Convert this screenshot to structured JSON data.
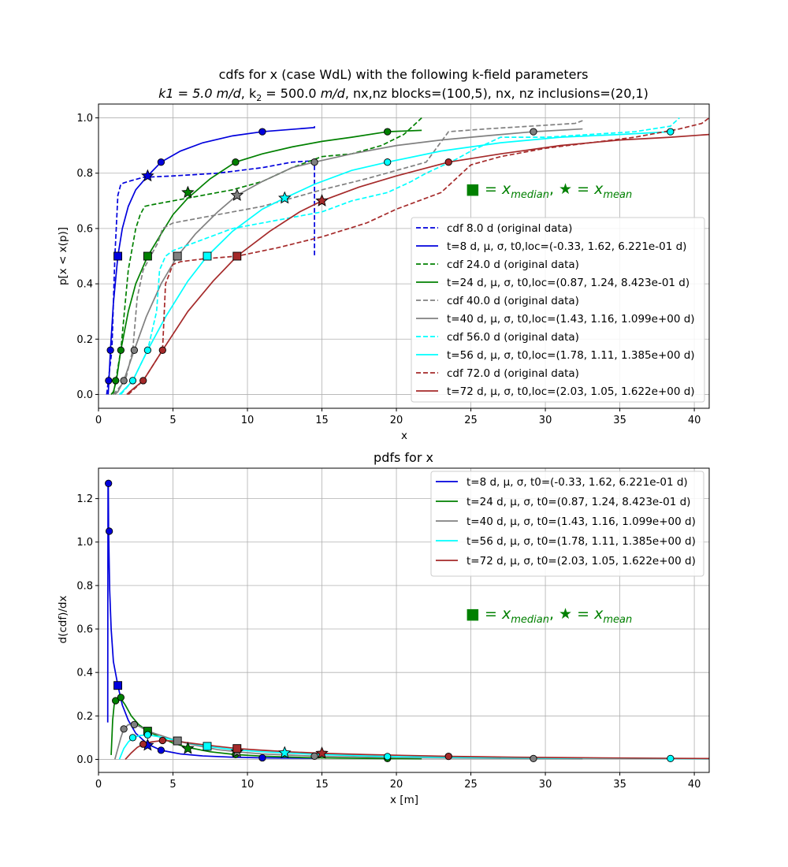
{
  "colors": {
    "t8": "#0000dd",
    "t24": "#008000",
    "t40": "#808080",
    "t56": "#00ffff",
    "t72": "#a52a2a",
    "annotation": "#008000",
    "grid": "#b0b0b0"
  },
  "annotation": {
    "square_glyph": "■",
    "star_glyph": "★",
    "median_text": " = x",
    "median_sub": "median",
    "mean_text": " = x",
    "mean_sub": "mean"
  },
  "chart_data": [
    {
      "type": "line",
      "title_line1": "cdfs for x (case WdL) with the following k-field parameters",
      "title_line2_parts": [
        "k1 = 5.0 ",
        "m/d",
        ", k",
        "2",
        " = 500.0 ",
        "m/d",
        ", nx,nz blocks=(100,5), nx, nz inclusions=(20,1)"
      ],
      "xlabel": "x",
      "ylabel": "p[x < x(p)]",
      "xlim": [
        0,
        41
      ],
      "ylim": [
        -0.05,
        1.05
      ],
      "xticks": [
        0,
        5,
        10,
        15,
        20,
        25,
        30,
        35,
        40
      ],
      "yticks": [
        0.0,
        0.2,
        0.4,
        0.6,
        0.8,
        1.0
      ],
      "ytick_labels": [
        "0.0",
        "0.2",
        "0.4",
        "0.6",
        "0.8",
        "1.0"
      ],
      "grid": true,
      "legend_position": "center-right",
      "series": [
        {
          "key": "t8",
          "name": "cdf 8.0 d (original data)",
          "style": "dashed",
          "x": [
            0.55,
            0.9,
            1.1,
            1.3,
            1.5,
            1.7,
            2.0,
            3.0,
            5.0,
            8.0,
            11.0,
            13.0,
            14.5,
            14.5
          ],
          "y": [
            0.0,
            0.16,
            0.5,
            0.72,
            0.76,
            0.765,
            0.77,
            0.785,
            0.79,
            0.8,
            0.82,
            0.84,
            0.845,
            0.5
          ]
        },
        {
          "key": "t8",
          "name": "t=8 d, μ, σ, t0,loc=(-0.33, 1.62, 6.221e-01 d)",
          "style": "solid",
          "x": [
            0.65,
            0.7,
            0.8,
            1.0,
            1.3,
            1.6,
            2.0,
            2.5,
            3.3,
            4.2,
            5.5,
            7.0,
            9.0,
            11.0,
            14.5,
            14.5
          ],
          "y": [
            0.0,
            0.05,
            0.16,
            0.33,
            0.5,
            0.6,
            0.68,
            0.74,
            0.79,
            0.84,
            0.88,
            0.91,
            0.935,
            0.95,
            0.965,
            0.97
          ]
        },
        {
          "key": "t24",
          "name": "cdf 24.0 d (original data)",
          "style": "dashed",
          "x": [
            1.0,
            1.5,
            2.0,
            2.5,
            2.8,
            3.1,
            3.5,
            5.0,
            7.0,
            9.0,
            11.0,
            13.0,
            15.0,
            17.0,
            19.0,
            20.5,
            21.7
          ],
          "y": [
            0.0,
            0.16,
            0.45,
            0.6,
            0.65,
            0.68,
            0.685,
            0.7,
            0.72,
            0.74,
            0.77,
            0.82,
            0.86,
            0.87,
            0.9,
            0.94,
            1.0
          ]
        },
        {
          "key": "t24",
          "name": "t=24 d, μ, σ, t0,loc=(0.87, 1.24, 8.423e-01 d)",
          "style": "solid",
          "x": [
            0.85,
            1.0,
            1.2,
            1.5,
            2.0,
            2.5,
            3.3,
            4.2,
            5.0,
            6.0,
            7.5,
            9.2,
            11.0,
            13.0,
            15.0,
            17.0,
            19.4,
            21.7
          ],
          "y": [
            0.0,
            0.01,
            0.05,
            0.16,
            0.3,
            0.4,
            0.5,
            0.58,
            0.65,
            0.71,
            0.78,
            0.84,
            0.87,
            0.895,
            0.915,
            0.93,
            0.95,
            0.955
          ]
        },
        {
          "key": "t40",
          "name": "cdf 40.0 d (original data)",
          "style": "dashed",
          "x": [
            1.0,
            1.8,
            2.3,
            2.6,
            3.0,
            3.5,
            4.0,
            4.3,
            5.0,
            7.0,
            9.0,
            11.0,
            13.0,
            15.0,
            18.0,
            22.0,
            23.5,
            26.0,
            29.0,
            32.0,
            32.5
          ],
          "y": [
            0.0,
            0.05,
            0.16,
            0.35,
            0.45,
            0.5,
            0.55,
            0.6,
            0.62,
            0.64,
            0.66,
            0.68,
            0.71,
            0.74,
            0.78,
            0.84,
            0.95,
            0.96,
            0.97,
            0.98,
            0.99
          ]
        },
        {
          "key": "t40",
          "name": "t=40 d, μ, σ, t0,loc=(1.43, 1.16, 1.099e+00 d)",
          "style": "solid",
          "x": [
            1.1,
            1.3,
            1.7,
            2.4,
            3.2,
            4.2,
            5.3,
            6.5,
            8.0,
            9.3,
            11.0,
            13.0,
            14.5,
            17.0,
            20.0,
            23.0,
            26.0,
            29.2,
            32.5
          ],
          "y": [
            0.0,
            0.01,
            0.05,
            0.16,
            0.28,
            0.4,
            0.5,
            0.58,
            0.66,
            0.72,
            0.77,
            0.82,
            0.84,
            0.87,
            0.9,
            0.92,
            0.935,
            0.95,
            0.96
          ]
        },
        {
          "key": "t56",
          "name": "cdf 56.0 d (original data)",
          "style": "dashed",
          "x": [
            1.5,
            2.3,
            3.3,
            3.9,
            4.1,
            4.5,
            5.0,
            7.0,
            9.0,
            12.0,
            15.0,
            17.0,
            19.4,
            21.0,
            22.0,
            24.0,
            25.0,
            27.0,
            30.0,
            33.0,
            36.0,
            38.4,
            39.0
          ],
          "y": [
            0.0,
            0.05,
            0.16,
            0.3,
            0.45,
            0.5,
            0.52,
            0.56,
            0.6,
            0.63,
            0.66,
            0.7,
            0.73,
            0.77,
            0.8,
            0.85,
            0.88,
            0.93,
            0.93,
            0.94,
            0.95,
            0.97,
            1.0
          ]
        },
        {
          "key": "t56",
          "name": "t=56 d, μ, σ, t0,loc=(1.78, 1.11, 1.385e+00 d)",
          "style": "solid",
          "x": [
            1.4,
            1.6,
            2.3,
            3.3,
            4.5,
            6.0,
            7.3,
            9.0,
            11.0,
            12.5,
            14.5,
            17.0,
            19.4,
            23.0,
            27.0,
            31.0,
            35.0,
            38.4
          ],
          "y": [
            0.0,
            0.01,
            0.05,
            0.16,
            0.28,
            0.41,
            0.5,
            0.59,
            0.67,
            0.71,
            0.76,
            0.81,
            0.84,
            0.88,
            0.91,
            0.93,
            0.94,
            0.95
          ]
        },
        {
          "key": "t72",
          "name": "cdf 72.0 d (original data)",
          "style": "dashed",
          "x": [
            2.0,
            3.0,
            4.3,
            4.5,
            5.0,
            5.5,
            7.0,
            9.3,
            12.0,
            15.0,
            18.0,
            20.0,
            23.0,
            25.0,
            27.0,
            30.0,
            33.0,
            36.0,
            39.0,
            40.5,
            41.0
          ],
          "y": [
            0.0,
            0.05,
            0.16,
            0.4,
            0.47,
            0.48,
            0.49,
            0.5,
            0.53,
            0.57,
            0.62,
            0.67,
            0.73,
            0.83,
            0.86,
            0.89,
            0.91,
            0.93,
            0.96,
            0.98,
            1.0
          ]
        },
        {
          "key": "t72",
          "name": "t=72 d, μ, σ, t0,loc=(2.03, 1.05, 1.622e+00 d)",
          "style": "solid",
          "x": [
            1.9,
            2.1,
            3.0,
            4.3,
            6.0,
            7.7,
            9.3,
            11.5,
            13.5,
            15.0,
            17.5,
            20.0,
            23.5,
            27.0,
            31.0,
            35.0,
            38.4,
            41.0
          ],
          "y": [
            0.0,
            0.01,
            0.05,
            0.16,
            0.3,
            0.41,
            0.5,
            0.59,
            0.66,
            0.7,
            0.75,
            0.79,
            0.84,
            0.87,
            0.9,
            0.92,
            0.93,
            0.94
          ]
        }
      ],
      "markers": [
        {
          "key": "t8",
          "circles": [
            [
              0.68,
              0.05
            ],
            [
              0.8,
              0.16
            ],
            [
              4.2,
              0.84
            ],
            [
              11.0,
              0.95
            ]
          ],
          "median": [
            1.3,
            0.5
          ],
          "mean": [
            3.3,
            0.79
          ]
        },
        {
          "key": "t24",
          "circles": [
            [
              1.15,
              0.05
            ],
            [
              1.5,
              0.16
            ],
            [
              9.2,
              0.84
            ],
            [
              19.4,
              0.95
            ]
          ],
          "median": [
            3.3,
            0.5
          ],
          "mean": [
            6.0,
            0.73
          ]
        },
        {
          "key": "t40",
          "circles": [
            [
              1.7,
              0.05
            ],
            [
              2.4,
              0.16
            ],
            [
              14.5,
              0.84
            ],
            [
              29.2,
              0.95
            ]
          ],
          "median": [
            5.3,
            0.5
          ],
          "mean": [
            9.3,
            0.72
          ]
        },
        {
          "key": "t56",
          "circles": [
            [
              2.3,
              0.05
            ],
            [
              3.3,
              0.16
            ],
            [
              19.4,
              0.84
            ],
            [
              38.4,
              0.95
            ]
          ],
          "median": [
            7.3,
            0.5
          ],
          "mean": [
            12.5,
            0.71
          ]
        },
        {
          "key": "t72",
          "circles": [
            [
              3.0,
              0.05
            ],
            [
              4.3,
              0.16
            ],
            [
              23.5,
              0.84
            ]
          ],
          "median": [
            9.3,
            0.5
          ],
          "mean": [
            15.0,
            0.7
          ]
        }
      ]
    },
    {
      "type": "line",
      "title": "pdfs for x",
      "xlabel": "x [m]",
      "ylabel": "d(cdf)/dx",
      "xlim": [
        0,
        41
      ],
      "ylim": [
        -0.06,
        1.34
      ],
      "xticks": [
        0,
        5,
        10,
        15,
        20,
        25,
        30,
        35,
        40
      ],
      "yticks": [
        0.0,
        0.2,
        0.4,
        0.6,
        0.8,
        1.0,
        1.2
      ],
      "ytick_labels": [
        "0.0",
        "0.2",
        "0.4",
        "0.6",
        "0.8",
        "1.0",
        "1.2"
      ],
      "grid": true,
      "legend_position": "top-right",
      "series": [
        {
          "key": "t8",
          "name": "t=8 d, μ, σ, t0=(-0.33, 1.62, 6.221e-01 d)",
          "style": "solid",
          "x": [
            0.62,
            0.63,
            0.64,
            0.66,
            0.68,
            0.75,
            0.85,
            1.0,
            1.3,
            1.6,
            2.0,
            2.5,
            3.3,
            4.2,
            5.5,
            7.0,
            9.0,
            11.0,
            14.5
          ],
          "y": [
            0.17,
            0.9,
            1.27,
            1.26,
            1.05,
            0.78,
            0.6,
            0.45,
            0.34,
            0.25,
            0.18,
            0.12,
            0.07,
            0.042,
            0.025,
            0.016,
            0.01,
            0.007,
            0.005
          ]
        },
        {
          "key": "t24",
          "name": "t=24 d, μ, σ, t0=(0.87, 1.24, 8.423e-01 d)",
          "style": "solid",
          "x": [
            0.85,
            0.95,
            1.05,
            1.15,
            1.3,
            1.5,
            1.8,
            2.2,
            2.7,
            3.3,
            4.2,
            5.0,
            6.0,
            7.5,
            9.2,
            11.0,
            14.0,
            17.0,
            19.4,
            21.7
          ],
          "y": [
            0.02,
            0.18,
            0.25,
            0.27,
            0.285,
            0.28,
            0.25,
            0.2,
            0.16,
            0.13,
            0.1,
            0.075,
            0.055,
            0.035,
            0.022,
            0.015,
            0.008,
            0.005,
            0.004,
            0.003
          ]
        },
        {
          "key": "t40",
          "name": "t=40 d, μ, σ, t0=(1.43, 1.16, 1.099e+00 d)",
          "style": "solid",
          "x": [
            1.1,
            1.3,
            1.5,
            1.7,
            2.0,
            2.4,
            2.8,
            3.3,
            4.2,
            5.3,
            6.5,
            8.0,
            9.3,
            11.0,
            14.5,
            18.0,
            22.0,
            26.0,
            29.2,
            32.5
          ],
          "y": [
            0.0,
            0.05,
            0.1,
            0.14,
            0.16,
            0.16,
            0.15,
            0.13,
            0.11,
            0.085,
            0.065,
            0.045,
            0.035,
            0.025,
            0.015,
            0.01,
            0.007,
            0.005,
            0.004,
            0.003
          ]
        },
        {
          "key": "t56",
          "name": "t=56 d, μ, σ, t0=(1.78, 1.11, 1.385e+00 d)",
          "style": "solid",
          "x": [
            1.4,
            1.7,
            2.0,
            2.3,
            2.8,
            3.3,
            4.0,
            5.0,
            6.0,
            7.3,
            9.0,
            11.0,
            12.5,
            15.0,
            19.4,
            24.0,
            30.0,
            35.0,
            38.4,
            41.0
          ],
          "y": [
            0.0,
            0.05,
            0.08,
            0.1,
            0.11,
            0.113,
            0.105,
            0.09,
            0.075,
            0.06,
            0.045,
            0.035,
            0.03,
            0.022,
            0.013,
            0.009,
            0.006,
            0.005,
            0.004,
            0.003
          ]
        },
        {
          "key": "t72",
          "name": "t=72 d, μ, σ, t0=(2.03, 1.05, 1.622e+00 d)",
          "style": "solid",
          "x": [
            1.8,
            2.2,
            2.6,
            3.0,
            3.5,
            4.3,
            5.3,
            6.5,
            8.0,
            9.3,
            11.0,
            13.0,
            15.0,
            18.0,
            23.5,
            28.0,
            33.0,
            38.0,
            41.0
          ],
          "y": [
            0.0,
            0.03,
            0.055,
            0.07,
            0.08,
            0.087,
            0.083,
            0.072,
            0.06,
            0.05,
            0.042,
            0.034,
            0.028,
            0.022,
            0.014,
            0.01,
            0.007,
            0.005,
            0.004
          ]
        }
      ],
      "markers": [
        {
          "key": "t8",
          "circles": [
            [
              0.67,
              1.27
            ],
            [
              0.72,
              1.05
            ],
            [
              4.2,
              0.042
            ],
            [
              11.0,
              0.007
            ]
          ],
          "median": [
            1.3,
            0.34
          ],
          "mean": [
            3.3,
            0.065
          ]
        },
        {
          "key": "t24",
          "circles": [
            [
              1.15,
              0.27
            ],
            [
              1.5,
              0.285
            ],
            [
              9.2,
              0.022
            ],
            [
              19.4,
              0.004
            ]
          ],
          "median": [
            3.3,
            0.13
          ],
          "mean": [
            6.0,
            0.05
          ]
        },
        {
          "key": "t40",
          "circles": [
            [
              1.7,
              0.14
            ],
            [
              2.4,
              0.16
            ],
            [
              14.5,
              0.015
            ],
            [
              29.2,
              0.004
            ]
          ],
          "median": [
            5.3,
            0.085
          ],
          "mean": [
            9.3,
            0.035
          ]
        },
        {
          "key": "t56",
          "circles": [
            [
              2.3,
              0.1
            ],
            [
              3.3,
              0.113
            ],
            [
              19.4,
              0.013
            ],
            [
              38.4,
              0.004
            ]
          ],
          "median": [
            7.3,
            0.06
          ],
          "mean": [
            12.5,
            0.03
          ]
        },
        {
          "key": "t72",
          "circles": [
            [
              3.0,
              0.07
            ],
            [
              4.3,
              0.087
            ],
            [
              23.5,
              0.014
            ]
          ],
          "median": [
            9.3,
            0.05
          ],
          "mean": [
            15.0,
            0.028
          ]
        }
      ]
    }
  ]
}
